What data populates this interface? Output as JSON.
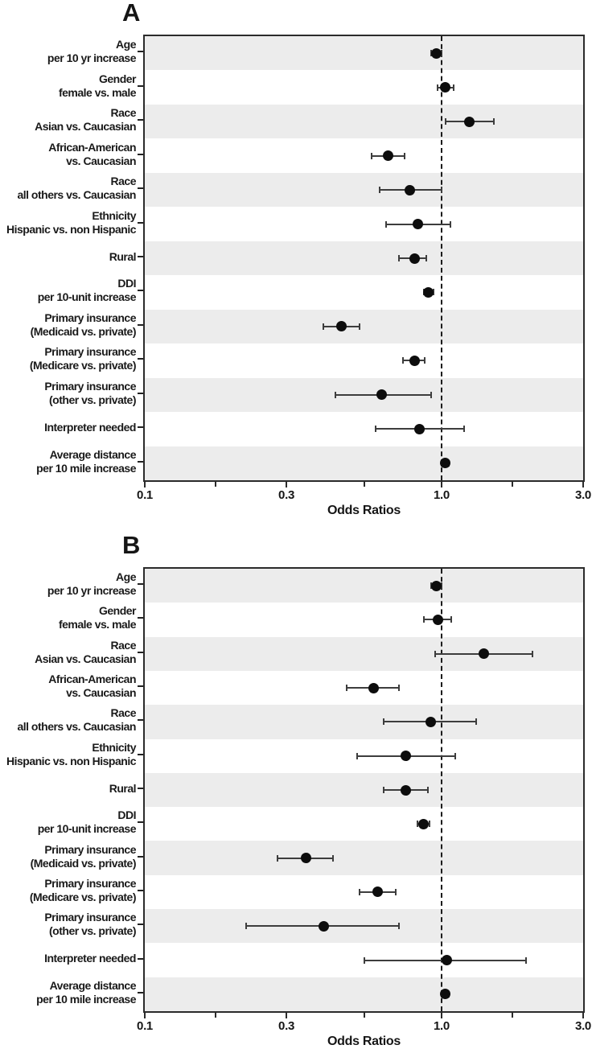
{
  "colors": {
    "dot": "#0d0d0d",
    "ci_line": "#3d3d3d",
    "stripe": "#ececec",
    "frame": "#2b2b2b",
    "reference_line": "#1c1c1c"
  },
  "chart_data": [
    {
      "type": "scatter",
      "title": "A",
      "xlabel": "Odds Ratios",
      "xscale": "log",
      "xlim": [
        0.1,
        3.0
      ],
      "xticks": [
        0.1,
        0.3,
        1.0,
        3.0
      ],
      "xtick_labels": [
        "0.1",
        "0.3",
        "1.0",
        "3.0"
      ],
      "minor_xticks": [
        0.173,
        0.548,
        1.732
      ],
      "reference_line_x": 1.0,
      "grid": "horizontal-stripes-on-odd-rows",
      "legend": "none",
      "rows": [
        {
          "label_lines": [
            "Age",
            "per 10 yr increase"
          ],
          "or": 0.96,
          "ci": [
            0.92,
            1.0
          ]
        },
        {
          "label_lines": [
            "Gender",
            "female vs. male"
          ],
          "or": 1.03,
          "ci": [
            0.97,
            1.1
          ]
        },
        {
          "label_lines": [
            "Race",
            "Asian vs. Caucasian"
          ],
          "or": 1.24,
          "ci": [
            1.03,
            1.5
          ]
        },
        {
          "label_lines": [
            "African-American",
            "vs. Caucasian"
          ],
          "or": 0.66,
          "ci": [
            0.58,
            0.75
          ]
        },
        {
          "label_lines": [
            "Race",
            "all others vs. Caucasian"
          ],
          "or": 0.78,
          "ci": [
            0.62,
            1.0
          ]
        },
        {
          "label_lines": [
            "Ethnicity",
            "Hispanic vs. non Hispanic"
          ],
          "or": 0.83,
          "ci": [
            0.65,
            1.07
          ]
        },
        {
          "label_lines": [
            "Rural"
          ],
          "or": 0.81,
          "ci": [
            0.72,
            0.89
          ]
        },
        {
          "label_lines": [
            "DDI",
            "per 10-unit increase"
          ],
          "or": 0.9,
          "ci": [
            0.87,
            0.94
          ]
        },
        {
          "label_lines": [
            "Primary insurance",
            "(Medicaid vs. private)"
          ],
          "or": 0.46,
          "ci": [
            0.4,
            0.53
          ]
        },
        {
          "label_lines": [
            "Primary insurance",
            "(Medicare vs. private)"
          ],
          "or": 0.81,
          "ci": [
            0.74,
            0.88
          ]
        },
        {
          "label_lines": [
            "Primary insurance",
            "(other vs. private)"
          ],
          "or": 0.63,
          "ci": [
            0.44,
            0.92
          ]
        },
        {
          "label_lines": [
            "Interpreter needed"
          ],
          "or": 0.84,
          "ci": [
            0.6,
            1.19
          ]
        },
        {
          "label_lines": [
            "Average distance",
            "per 10 mile increase"
          ],
          "or": 1.03,
          "ci": [
            1.0,
            1.06
          ]
        }
      ]
    },
    {
      "type": "scatter",
      "title": "B",
      "xlabel": "Odds Ratios",
      "xscale": "log",
      "xlim": [
        0.1,
        3.0
      ],
      "xticks": [
        0.1,
        0.3,
        1.0,
        3.0
      ],
      "xtick_labels": [
        "0.1",
        "0.3",
        "1.0",
        "3.0"
      ],
      "minor_xticks": [
        0.173,
        0.548,
        1.732
      ],
      "reference_line_x": 1.0,
      "grid": "horizontal-stripes-on-odd-rows",
      "legend": "none",
      "rows": [
        {
          "label_lines": [
            "Age",
            "per 10 yr increase"
          ],
          "or": 0.96,
          "ci": [
            0.92,
            1.0
          ]
        },
        {
          "label_lines": [
            "Gender",
            "female vs. male"
          ],
          "or": 0.97,
          "ci": [
            0.87,
            1.08
          ]
        },
        {
          "label_lines": [
            "Race",
            "Asian vs. Caucasian"
          ],
          "or": 1.39,
          "ci": [
            0.95,
            2.02
          ]
        },
        {
          "label_lines": [
            "African-American",
            "vs. Caucasian"
          ],
          "or": 0.59,
          "ci": [
            0.48,
            0.72
          ]
        },
        {
          "label_lines": [
            "Race",
            "all others vs. Caucasian"
          ],
          "or": 0.92,
          "ci": [
            0.64,
            1.31
          ]
        },
        {
          "label_lines": [
            "Ethnicity",
            "Hispanic vs. non Hispanic"
          ],
          "or": 0.76,
          "ci": [
            0.52,
            1.11
          ]
        },
        {
          "label_lines": [
            "Rural"
          ],
          "or": 0.76,
          "ci": [
            0.64,
            0.9
          ]
        },
        {
          "label_lines": [
            "DDI",
            "per 10-unit increase"
          ],
          "or": 0.87,
          "ci": [
            0.83,
            0.91
          ]
        },
        {
          "label_lines": [
            "Primary insurance",
            "(Medicaid vs. private)"
          ],
          "or": 0.35,
          "ci": [
            0.28,
            0.43
          ]
        },
        {
          "label_lines": [
            "Primary insurance",
            "(Medicare vs. private)"
          ],
          "or": 0.61,
          "ci": [
            0.53,
            0.7
          ]
        },
        {
          "label_lines": [
            "Primary insurance",
            "(other vs. private)"
          ],
          "or": 0.4,
          "ci": [
            0.22,
            0.72
          ]
        },
        {
          "label_lines": [
            "Interpreter needed"
          ],
          "or": 1.04,
          "ci": [
            0.55,
            1.93
          ]
        },
        {
          "label_lines": [
            "Average distance",
            "per 10 mile increase"
          ],
          "or": 1.03,
          "ci": [
            1.0,
            1.06
          ]
        }
      ]
    }
  ]
}
